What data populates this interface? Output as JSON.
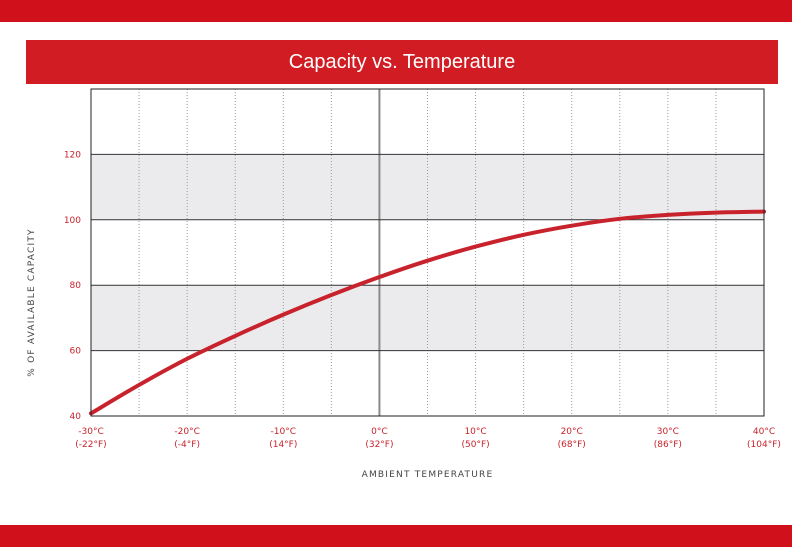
{
  "colors": {
    "brand_red": "#d0101a",
    "title_red": "#d01c22",
    "curve": "#c8232c",
    "tick_text": "#c8232c",
    "band": "#ebebee",
    "grid": "#333333",
    "zero_line": "#8a8a8a"
  },
  "chart_data": {
    "type": "line",
    "title": "Capacity vs. Temperature",
    "xlabel": "AMBIENT TEMPERATURE",
    "ylabel": "% OF AVAILABLE CAPACITY",
    "xlim": [
      -30,
      40
    ],
    "ylim": [
      40,
      140
    ],
    "x_ticks": [
      {
        "value": -30,
        "label": "-30°C",
        "sub": "(-22°F)"
      },
      {
        "value": -20,
        "label": "-20°C",
        "sub": "(-4°F)"
      },
      {
        "value": -10,
        "label": "-10°C",
        "sub": "(14°F)"
      },
      {
        "value": 0,
        "label": "0°C",
        "sub": "(32°F)"
      },
      {
        "value": 10,
        "label": "10°C",
        "sub": "(50°F)"
      },
      {
        "value": 20,
        "label": "20°C",
        "sub": "(68°F)"
      },
      {
        "value": 30,
        "label": "30°C",
        "sub": "(86°F)"
      },
      {
        "value": 40,
        "label": "40°C",
        "sub": "(104°F)"
      }
    ],
    "y_ticks": [
      {
        "value": 40,
        "label": "40"
      },
      {
        "value": 60,
        "label": "60"
      },
      {
        "value": 80,
        "label": "80"
      },
      {
        "value": 100,
        "label": "100"
      },
      {
        "value": 120,
        "label": "120"
      }
    ],
    "shaded_bands": [
      [
        60,
        80
      ],
      [
        100,
        120
      ]
    ],
    "series": [
      {
        "x": [
          -30,
          -25,
          -20,
          -15,
          -10,
          -5,
          0,
          5,
          10,
          15,
          20,
          25,
          30,
          35,
          40
        ],
        "y": [
          40.8,
          49.5,
          57.5,
          64.5,
          71,
          77,
          82.5,
          87.5,
          91.8,
          95.4,
          98.2,
          100.3,
          101.5,
          102.2,
          102.5
        ]
      }
    ]
  }
}
